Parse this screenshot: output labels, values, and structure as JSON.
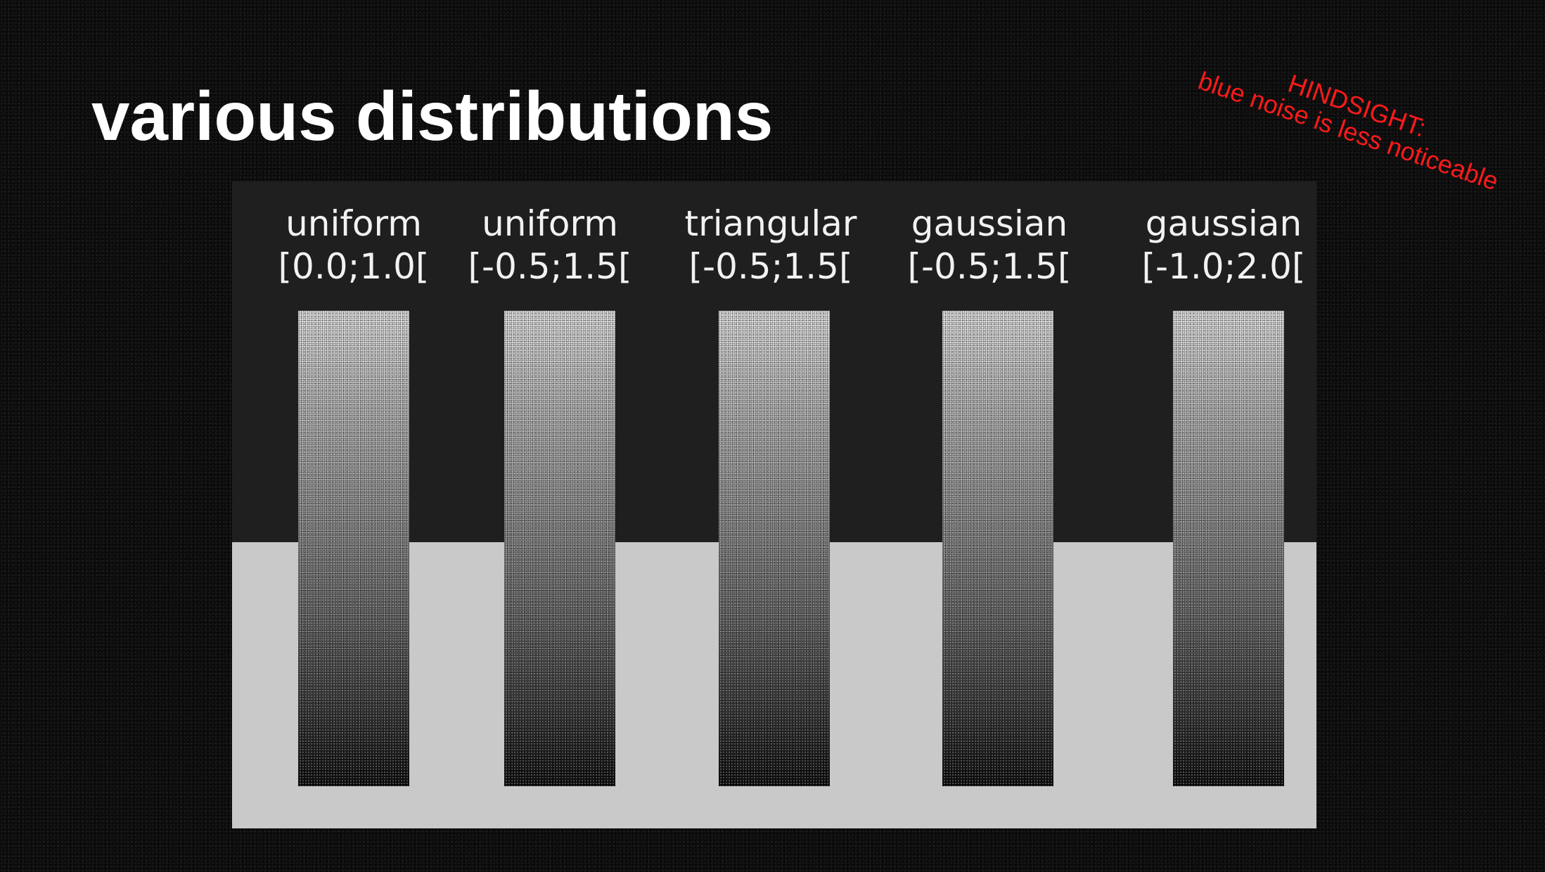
{
  "slide": {
    "title": "various distributions"
  },
  "note": {
    "line1": "HINDSIGHT:",
    "line2": "blue noise is less noticeable",
    "color": "#ff1a1a"
  },
  "figure": {
    "top_background": "#1f1f1f",
    "bottom_background": "#c9c9c9",
    "columns": [
      {
        "distribution": "uniform",
        "range": "[0.0;1.0["
      },
      {
        "distribution": "uniform",
        "range": "[-0.5;1.5["
      },
      {
        "distribution": "triangular",
        "range": "[-0.5;1.5["
      },
      {
        "distribution": "gaussian",
        "range": "[-0.5;1.5["
      },
      {
        "distribution": "gaussian",
        "range": "[-1.0;2.0["
      }
    ]
  }
}
